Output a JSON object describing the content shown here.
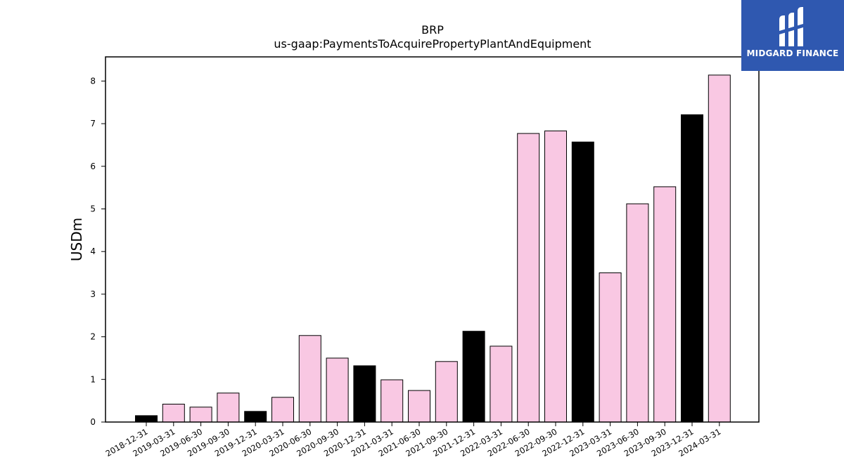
{
  "brand": {
    "name": "MIDGARD FINANCE",
    "bg_color": "#2f58b0"
  },
  "chart_data": {
    "type": "bar",
    "title": "BRP",
    "subtitle": "us-gaap:PaymentsToAcquirePropertyPlantAndEquipment",
    "ylabel": "USDm",
    "xlabel": "",
    "ylim": [
      0,
      8.5
    ],
    "yticks": [
      0,
      1,
      2,
      3,
      4,
      5,
      6,
      7,
      8
    ],
    "grid": false,
    "categories": [
      "2018-12-31",
      "2019-03-31",
      "2019-06-30",
      "2019-09-30",
      "2019-12-31",
      "2020-03-31",
      "2020-06-30",
      "2020-09-30",
      "2020-12-31",
      "2021-03-31",
      "2021-06-30",
      "2021-09-30",
      "2021-12-31",
      "2022-03-31",
      "2022-06-30",
      "2022-09-30",
      "2022-12-31",
      "2023-03-31",
      "2023-06-30",
      "2023-09-30",
      "2023-12-31",
      "2024-03-31"
    ],
    "values": [
      0.15,
      0.42,
      0.35,
      0.68,
      0.25,
      0.58,
      2.03,
      1.5,
      1.32,
      0.99,
      0.74,
      1.42,
      2.13,
      1.78,
      6.77,
      6.83,
      6.57,
      3.5,
      5.12,
      5.52,
      7.21,
      8.14
    ],
    "colors": {
      "quarter": "#f9c8e3",
      "year_end": "#000000",
      "edge": "#000000"
    }
  }
}
